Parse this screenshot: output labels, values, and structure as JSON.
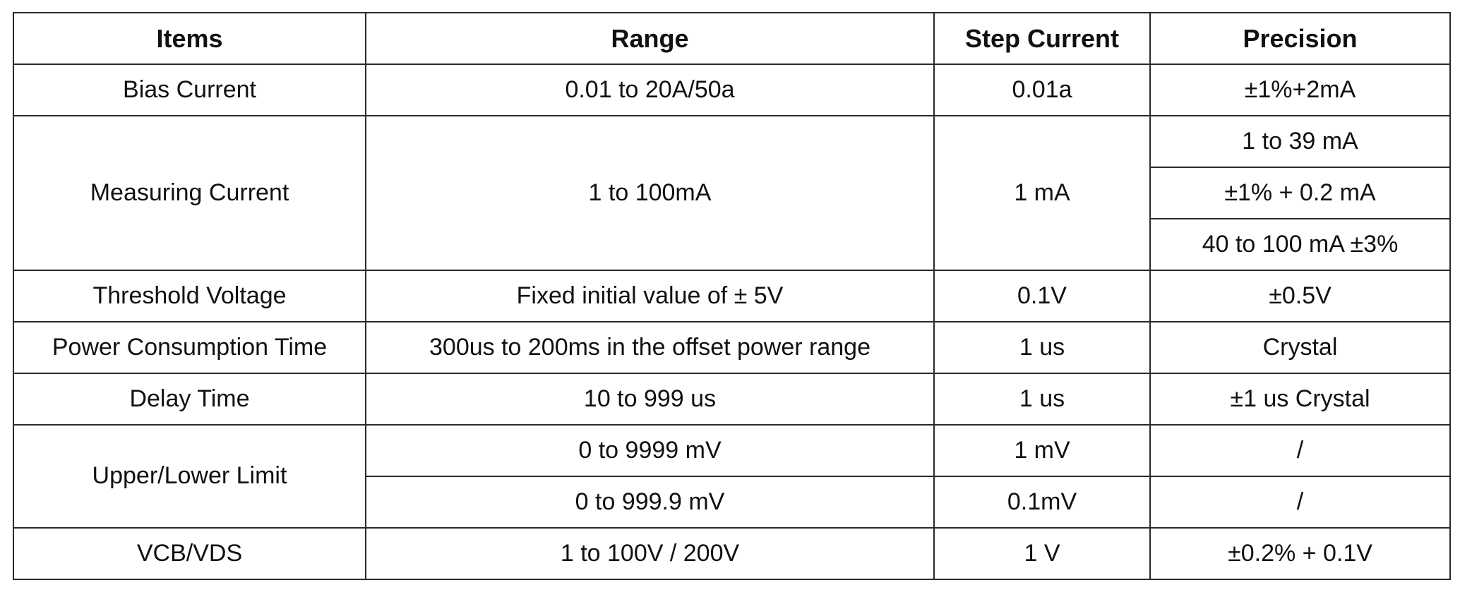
{
  "table": {
    "headers": {
      "items": "Items",
      "range": "Range",
      "step_current": "Step Current",
      "precision": "Precision"
    },
    "rows": {
      "bias_current": {
        "item": "Bias Current",
        "range": "0.01 to 20A/50a",
        "step": "0.01a",
        "precision": "±1%+2mA"
      },
      "measuring_current": {
        "item": "Measuring Current",
        "range": "1 to 100mA",
        "step": "1 mA",
        "precision": [
          "1 to 39 mA",
          "±1% + 0.2 mA",
          "40 to 100 mA ±3%"
        ]
      },
      "threshold_voltage": {
        "item": "Threshold Voltage",
        "range": "Fixed initial value of ± 5V",
        "step": "0.1V",
        "precision": "±0.5V"
      },
      "power_consumption_time": {
        "item": "Power Consumption Time",
        "range": "300us to 200ms in the offset power range",
        "step": "1 us",
        "precision": "Crystal"
      },
      "delay_time": {
        "item": "Delay Time",
        "range": "10 to 999 us",
        "step": "1 us",
        "precision": "±1 us Crystal"
      },
      "upper_lower_limit": {
        "item": "Upper/Lower Limit",
        "ranges": [
          {
            "range": "0 to 9999 mV",
            "step": "1 mV",
            "precision": "/"
          },
          {
            "range": "0 to 999.9 mV",
            "step": "0.1mV",
            "precision": "/"
          }
        ]
      },
      "vcb_vds": {
        "item": "VCB/VDS",
        "range": "1 to 100V / 200V",
        "step": "1 V",
        "precision": "±0.2% + 0.1V"
      }
    }
  }
}
